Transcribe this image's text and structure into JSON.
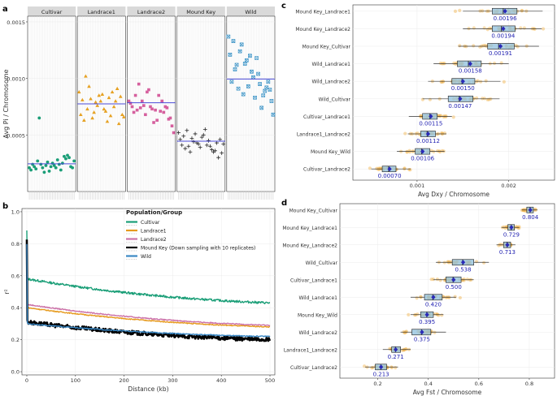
{
  "panel_labels": {
    "a": "a",
    "b": "b",
    "c": "c",
    "d": "d"
  },
  "chart_data": [
    {
      "panel": "a",
      "type": "scatter",
      "ylabel": "Avg Pi / Chromosome",
      "ylim": [
        0.0,
        0.00155
      ],
      "yticks": [
        0.0005,
        0.001,
        0.0015
      ],
      "ytick_labels": [
        "0.0005",
        "0.0010",
        "0.0015"
      ],
      "facets": [
        {
          "name": "Cultivar",
          "color": "#1a9e77",
          "marker": "circle",
          "mean": 0.000245,
          "values": [
            0.00021,
            0.00019,
            0.00024,
            0.00022,
            0.0002,
            0.00027,
            0.00065,
            0.00024,
            0.00021,
            0.00017,
            0.00023,
            0.00026,
            0.00018,
            0.00022,
            0.00025,
            0.00023,
            0.00021,
            0.00028,
            0.00024,
            0.00019,
            0.00025,
            0.00031,
            0.00029,
            0.00032,
            0.0003,
            0.00022,
            0.00021,
            0.00027
          ]
        },
        {
          "name": "Landrace1",
          "color": "#e6a122",
          "marker": "triangle",
          "mean": 0.000775,
          "values": [
            0.00088,
            0.00068,
            0.00081,
            0.00063,
            0.00102,
            0.00073,
            0.00093,
            0.00082,
            0.00065,
            0.0007,
            0.00079,
            0.00076,
            0.00085,
            0.0008,
            0.00086,
            0.00073,
            0.00071,
            0.00062,
            0.00083,
            0.00067,
            0.00088,
            0.00075,
            0.0008,
            0.00091,
            0.0006,
            0.00084,
            0.00068,
            0.00066
          ]
        },
        {
          "name": "Landrace2",
          "color": "#d65f9e",
          "marker": "square",
          "mean": 0.000785,
          "values": [
            0.0008,
            0.00078,
            0.00075,
            0.0007,
            0.00085,
            0.00072,
            0.00095,
            0.00074,
            0.0008,
            0.00076,
            0.00068,
            0.00088,
            0.0009,
            0.00075,
            0.00073,
            0.00061,
            0.00072,
            0.00063,
            0.00085,
            0.00071,
            0.0008,
            0.0007,
            0.00075,
            0.00074,
            0.00064,
            0.00065,
            0.00058,
            0.00052
          ]
        },
        {
          "name": "Mound Key",
          "color": "#222222",
          "marker": "plus",
          "mean": 0.000445,
          "values": [
            0.00052,
            0.00046,
            0.00041,
            0.00049,
            0.00038,
            0.00054,
            0.0004,
            0.00035,
            0.00047,
            0.00044,
            0.00051,
            0.00043,
            0.00042,
            0.00039,
            0.00048,
            0.0005,
            0.00055,
            0.00041,
            0.00045,
            0.0004,
            0.00037,
            0.00035,
            0.00036,
            0.00043,
            0.0003,
            0.00046,
            0.00034,
            0.00042
          ]
        },
        {
          "name": "Wild",
          "color": "#3b93c6",
          "marker": "squarex",
          "mean": 0.000995,
          "values": [
            0.00137,
            0.00121,
            0.00097,
            0.00133,
            0.00108,
            0.00112,
            0.00091,
            0.00124,
            0.0013,
            0.00086,
            0.00113,
            0.00116,
            0.00093,
            0.0012,
            0.00106,
            0.00101,
            0.00083,
            0.00118,
            0.00104,
            0.00095,
            0.00074,
            0.00085,
            0.00089,
            0.00092,
            0.00097,
            0.0009,
            0.0008,
            0.00068
          ]
        }
      ]
    },
    {
      "panel": "b",
      "type": "line",
      "xlabel": "Distance (kb)",
      "ylabel": "r²",
      "xlim": [
        -10,
        510
      ],
      "ylim": [
        -0.02,
        1.02
      ],
      "xticks": [
        0,
        100,
        200,
        300,
        400,
        500
      ],
      "xtick_labels": [
        "0",
        "100",
        "200",
        "300",
        "400",
        "500"
      ],
      "yticks": [
        0.0,
        0.2,
        0.4,
        0.6,
        0.8,
        1.0
      ],
      "ytick_labels": [
        "0.0",
        "0.2",
        "0.4",
        "0.6",
        "0.8",
        "1.0"
      ],
      "legend_title": "Population/Group",
      "legend_position": "top-right",
      "series": [
        {
          "name": "Cultivar",
          "color": "#1a9e77",
          "peak": 0.88,
          "start": 0.58,
          "end": 0.43,
          "noise": 0.007
        },
        {
          "name": "Landrace1",
          "color": "#e69a1e",
          "peak": 0.72,
          "start": 0.4,
          "end": 0.28,
          "noise": 0.003
        },
        {
          "name": "Landrace2",
          "color": "#cc72a8",
          "peak": 0.78,
          "start": 0.42,
          "end": 0.29,
          "noise": 0.003
        },
        {
          "name": "Mound Key (Down sampling with 10 replicates)",
          "color": "#000000",
          "peak": 0.83,
          "start": 0.31,
          "end": 0.2,
          "noise": 0.012
        },
        {
          "name": "Wild",
          "color": "#3b88c4",
          "peak": 0.8,
          "start": 0.3,
          "end": 0.22,
          "noise": 0.003
        }
      ]
    },
    {
      "panel": "c",
      "type": "box",
      "xlabel": "Avg Dxy / Chromosome",
      "xlim": [
        0.0003,
        0.0025
      ],
      "xticks": [
        0.001,
        0.002
      ],
      "xtick_labels": [
        "0.001",
        "0.002"
      ],
      "rows": [
        {
          "label": "Mound Key_Landrace1",
          "mean_label": "0.00196",
          "mean": 0.00196,
          "q1": 0.00182,
          "median": 0.00194,
          "q3": 0.00209,
          "wlo": 0.0015,
          "whi": 0.00237
        },
        {
          "label": "Mound Key_Landrace2",
          "mean_label": "0.00194",
          "mean": 0.00194,
          "q1": 0.00182,
          "median": 0.00192,
          "q3": 0.00207,
          "wlo": 0.0015,
          "whi": 0.00236
        },
        {
          "label": "Mound Key_Cultivar",
          "mean_label": "0.00191",
          "mean": 0.00191,
          "q1": 0.00177,
          "median": 0.00189,
          "q3": 0.00206,
          "wlo": 0.00145,
          "whi": 0.00233
        },
        {
          "label": "Wild_Landrace1",
          "mean_label": "0.00158",
          "mean": 0.00158,
          "q1": 0.00144,
          "median": 0.00156,
          "q3": 0.0017,
          "wlo": 0.00118,
          "whi": 0.002
        },
        {
          "label": "Wild_Landrace2",
          "mean_label": "0.00150",
          "mean": 0.0015,
          "q1": 0.00138,
          "median": 0.00149,
          "q3": 0.00163,
          "wlo": 0.00112,
          "whi": 0.00191
        },
        {
          "label": "Wild_Cultivar",
          "mean_label": "0.00147",
          "mean": 0.00147,
          "q1": 0.00134,
          "median": 0.00146,
          "q3": 0.00161,
          "wlo": 0.00106,
          "whi": 0.0019
        },
        {
          "label": "Cultivar_Landrace1",
          "mean_label": "0.00115",
          "mean": 0.00115,
          "q1": 0.00106,
          "median": 0.00114,
          "q3": 0.00122,
          "wlo": 0.00091,
          "whi": 0.00138
        },
        {
          "label": "Landrace1_Landrace2",
          "mean_label": "0.00112",
          "mean": 0.00112,
          "q1": 0.00104,
          "median": 0.00111,
          "q3": 0.0012,
          "wlo": 0.0009,
          "whi": 0.00132
        },
        {
          "label": "Mound Key_Wild",
          "mean_label": "0.00106",
          "mean": 0.00106,
          "q1": 0.00098,
          "median": 0.00105,
          "q3": 0.00114,
          "wlo": 0.00078,
          "whi": 0.0013
        },
        {
          "label": "Cultivar_Landrace2",
          "mean_label": "0.00070",
          "mean": 0.0007,
          "q1": 0.00062,
          "median": 0.00069,
          "q3": 0.00077,
          "wlo": 0.0005,
          "whi": 0.00093
        }
      ]
    },
    {
      "panel": "d",
      "type": "box",
      "xlabel": "Avg Fst / Chromosome",
      "xlim": [
        0.05,
        0.9
      ],
      "xticks": [
        0.2,
        0.4,
        0.6,
        0.8
      ],
      "xtick_labels": [
        "0.2",
        "0.4",
        "0.6",
        "0.8"
      ],
      "rows": [
        {
          "label": "Mound Key_Cultivar",
          "mean_label": "0.804",
          "mean": 0.804,
          "q1": 0.79,
          "median": 0.803,
          "q3": 0.816,
          "wlo": 0.77,
          "whi": 0.832
        },
        {
          "label": "Mound Key_Landrace1",
          "mean_label": "0.729",
          "mean": 0.729,
          "q1": 0.715,
          "median": 0.728,
          "q3": 0.741,
          "wlo": 0.69,
          "whi": 0.76
        },
        {
          "label": "Mound Key_Landrace2",
          "mean_label": "0.713",
          "mean": 0.713,
          "q1": 0.698,
          "median": 0.712,
          "q3": 0.726,
          "wlo": 0.67,
          "whi": 0.745
        },
        {
          "label": "Wild_Cultivar",
          "mean_label": "0.538",
          "mean": 0.538,
          "q1": 0.495,
          "median": 0.536,
          "q3": 0.58,
          "wlo": 0.43,
          "whi": 0.64
        },
        {
          "label": "Cultivar_Landrace1",
          "mean_label": "0.500",
          "mean": 0.5,
          "q1": 0.47,
          "median": 0.498,
          "q3": 0.53,
          "wlo": 0.42,
          "whi": 0.58
        },
        {
          "label": "Wild_Landrace1",
          "mean_label": "0.420",
          "mean": 0.42,
          "q1": 0.385,
          "median": 0.418,
          "q3": 0.455,
          "wlo": 0.33,
          "whi": 0.51
        },
        {
          "label": "Mound Key_Wild",
          "mean_label": "0.395",
          "mean": 0.395,
          "q1": 0.37,
          "median": 0.394,
          "q3": 0.42,
          "wlo": 0.33,
          "whi": 0.46
        },
        {
          "label": "Wild_Landrace2",
          "mean_label": "0.375",
          "mean": 0.375,
          "q1": 0.335,
          "median": 0.373,
          "q3": 0.41,
          "wlo": 0.29,
          "whi": 0.47
        },
        {
          "label": "Landrace1_Landrace2",
          "mean_label": "0.271",
          "mean": 0.271,
          "q1": 0.255,
          "median": 0.27,
          "q3": 0.29,
          "wlo": 0.22,
          "whi": 0.33
        },
        {
          "label": "Cultivar_Landrace2",
          "mean_label": "0.213",
          "mean": 0.213,
          "q1": 0.19,
          "median": 0.212,
          "q3": 0.235,
          "wlo": 0.15,
          "whi": 0.28
        }
      ]
    }
  ]
}
